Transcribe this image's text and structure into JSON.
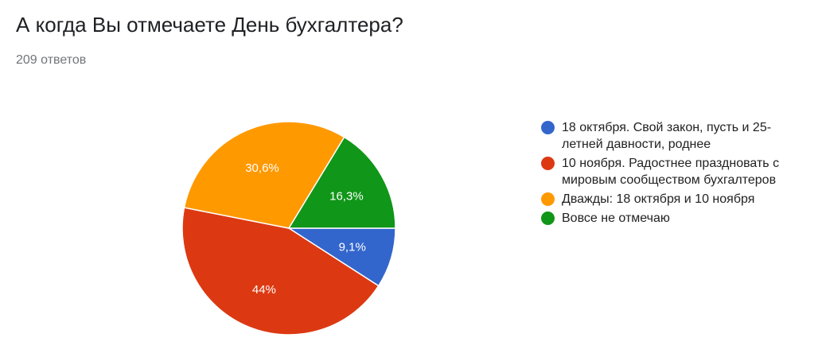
{
  "header": {
    "title": "А когда Вы отмечаете День бухгалтера?",
    "subtitle": "209 ответов"
  },
  "chart_data": {
    "type": "pie",
    "start_angle_deg": 90,
    "direction": "clockwise",
    "legend_position": "right",
    "slices": [
      {
        "label": "18 октября. Свой закон, пусть и 25-летней давности, роднее",
        "value": 9.1,
        "display": "9,1%",
        "color": "#3366cc"
      },
      {
        "label": "10 ноября. Радостнее праздновать с мировым сообществом бухгалтеров",
        "value": 44.0,
        "display": "44%",
        "color": "#dc3912"
      },
      {
        "label": "Дважды: 18 октября и 10 ноября",
        "value": 30.6,
        "display": "30,6%",
        "color": "#ff9900"
      },
      {
        "label": "Вовсе не отмечаю",
        "value": 16.3,
        "display": "16,3%",
        "color": "#109618"
      }
    ]
  }
}
